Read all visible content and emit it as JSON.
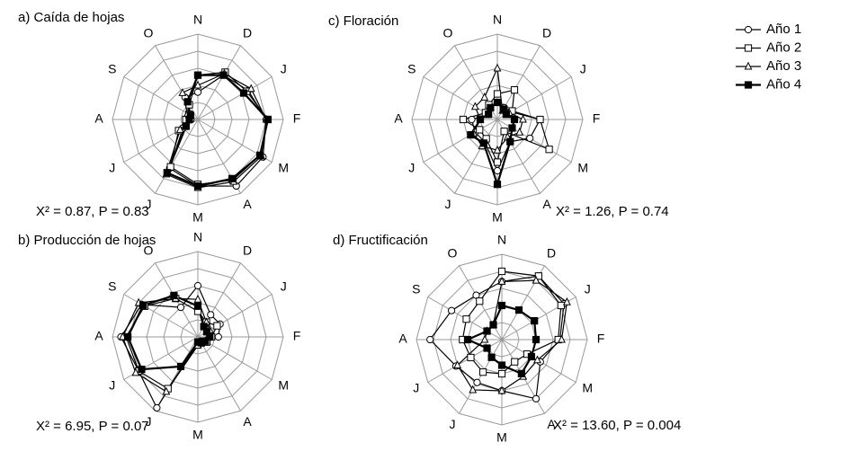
{
  "chart_data": [
    {
      "type": "radar",
      "title": "a) Caída de hojas",
      "annotation": "X² = 0.87, P = 0.83",
      "categories": [
        "N",
        "D",
        "J",
        "F",
        "M",
        "A",
        "M",
        "J",
        "J",
        "A",
        "S",
        "O"
      ],
      "rlim": [
        0,
        5
      ],
      "rticks": [
        1,
        2,
        3,
        4,
        5
      ],
      "grid": true,
      "series": [
        {
          "color": "#000000",
          "marker": "circle",
          "values": [
            1.6,
            3.0,
            3.4,
            4.0,
            4.4,
            4.5,
            3.9,
            3.3,
            1.0,
            0.4,
            0.5,
            1.5
          ]
        },
        {
          "color": "#000000",
          "marker": "square",
          "values": [
            2.6,
            3.2,
            3.3,
            4.1,
            4.2,
            4.1,
            3.8,
            3.2,
            1.3,
            0.7,
            0.6,
            1.0
          ]
        },
        {
          "color": "#000000",
          "marker": "triangle",
          "values": [
            2.0,
            3.1,
            3.6,
            4.0,
            4.3,
            4.2,
            4.0,
            3.7,
            1.2,
            0.5,
            0.7,
            1.8
          ]
        },
        {
          "color": "#000000",
          "marker": "square-filled",
          "values": [
            2.6,
            3.0,
            3.1,
            4.1,
            4.2,
            4.0,
            3.9,
            3.6,
            0.8,
            0.5,
            0.5,
            1.2
          ]
        }
      ]
    },
    {
      "type": "radar",
      "title": "b) Producción de hojas",
      "annotation": "X² = 6.95, P = 0.07",
      "categories": [
        "N",
        "D",
        "J",
        "F",
        "M",
        "A",
        "M",
        "J",
        "J",
        "A",
        "S",
        "O"
      ],
      "rlim": [
        0,
        5
      ],
      "rticks": [
        1,
        2,
        3,
        4,
        5
      ],
      "grid": true,
      "series": [
        {
          "color": "#000000",
          "marker": "circle",
          "values": [
            3.0,
            1.5,
            1.5,
            1.2,
            0.6,
            0.3,
            0.3,
            4.8,
            4.0,
            4.5,
            3.8,
            2.0
          ]
        },
        {
          "color": "#000000",
          "marker": "square",
          "values": [
            1.5,
            1.0,
            1.3,
            0.8,
            0.6,
            0.4,
            0.4,
            3.5,
            4.0,
            4.2,
            3.6,
            2.6
          ]
        },
        {
          "color": "#000000",
          "marker": "triangle",
          "values": [
            2.2,
            1.0,
            0.8,
            0.6,
            0.5,
            0.3,
            0.5,
            3.7,
            4.2,
            4.4,
            4.0,
            2.6
          ]
        },
        {
          "color": "#000000",
          "marker": "square-filled",
          "values": [
            1.8,
            0.7,
            0.6,
            0.7,
            0.5,
            0.4,
            0.3,
            2.0,
            3.8,
            4.1,
            3.7,
            2.8
          ]
        }
      ]
    },
    {
      "type": "radar",
      "title": "c) Floración",
      "annotation": "X² = 1.26, P = 0.74",
      "categories": [
        "N",
        "D",
        "J",
        "F",
        "M",
        "A",
        "M",
        "J",
        "J",
        "A",
        "S",
        "O"
      ],
      "rlim": [
        0,
        5
      ],
      "rticks": [
        1,
        2,
        3,
        4,
        5
      ],
      "grid": true,
      "series": [
        {
          "color": "#000000",
          "marker": "circle",
          "values": [
            1.0,
            0.8,
            0.9,
            2.5,
            2.2,
            1.5,
            3.0,
            1.5,
            1.5,
            1.5,
            0.6,
            0.8
          ]
        },
        {
          "color": "#000000",
          "marker": "square",
          "values": [
            1.5,
            2.0,
            1.0,
            2.5,
            3.5,
            0.8,
            2.5,
            1.3,
            1.2,
            2.0,
            0.8,
            1.0
          ]
        },
        {
          "color": "#000000",
          "marker": "triangle",
          "values": [
            3.0,
            0.6,
            0.8,
            1.5,
            1.5,
            1.2,
            1.8,
            1.8,
            1.6,
            1.0,
            1.5,
            1.5
          ]
        },
        {
          "color": "#000000",
          "marker": "square-filled",
          "values": [
            1.0,
            0.7,
            0.6,
            1.0,
            1.0,
            1.5,
            3.8,
            1.6,
            1.8,
            1.0,
            0.6,
            0.8
          ]
        }
      ]
    },
    {
      "type": "radar",
      "title": "d) Fructificación",
      "annotation": "X² = 13.60, P = 0.004",
      "categories": [
        "N",
        "D",
        "J",
        "F",
        "M",
        "A",
        "M",
        "J",
        "J",
        "A",
        "S",
        "O"
      ],
      "rlim": [
        0,
        5
      ],
      "rticks": [
        1,
        2,
        3,
        4,
        5
      ],
      "grid": true,
      "series": [
        {
          "color": "#000000",
          "marker": "circle",
          "values": [
            3.4,
            4.3,
            4.2,
            3.4,
            2.6,
            4.0,
            3.0,
            2.9,
            3.1,
            4.2,
            3.4,
            3.0
          ]
        },
        {
          "color": "#000000",
          "marker": "square",
          "values": [
            4.0,
            4.3,
            4.0,
            3.3,
            1.7,
            1.5,
            2.0,
            2.2,
            2.1,
            2.3,
            2.4,
            2.6
          ]
        },
        {
          "color": "#000000",
          "marker": "triangle",
          "values": [
            3.4,
            4.0,
            4.4,
            3.5,
            2.4,
            2.5,
            3.0,
            3.4,
            3.0,
            1.0,
            1.0,
            1.0
          ]
        },
        {
          "color": "#000000",
          "marker": "square-filled",
          "values": [
            2.0,
            2.0,
            2.2,
            2.0,
            2.0,
            2.3,
            1.5,
            1.2,
            1.0,
            2.0,
            1.0,
            1.0
          ]
        }
      ]
    }
  ],
  "legend": [
    {
      "name": "Año 1",
      "marker": "circle",
      "color": "#000000"
    },
    {
      "name": "Año 2",
      "marker": "square",
      "color": "#000000"
    },
    {
      "name": "Año 3",
      "marker": "triangle",
      "color": "#000000"
    },
    {
      "name": "Año 4",
      "marker": "square-filled",
      "color": "#000000"
    }
  ]
}
